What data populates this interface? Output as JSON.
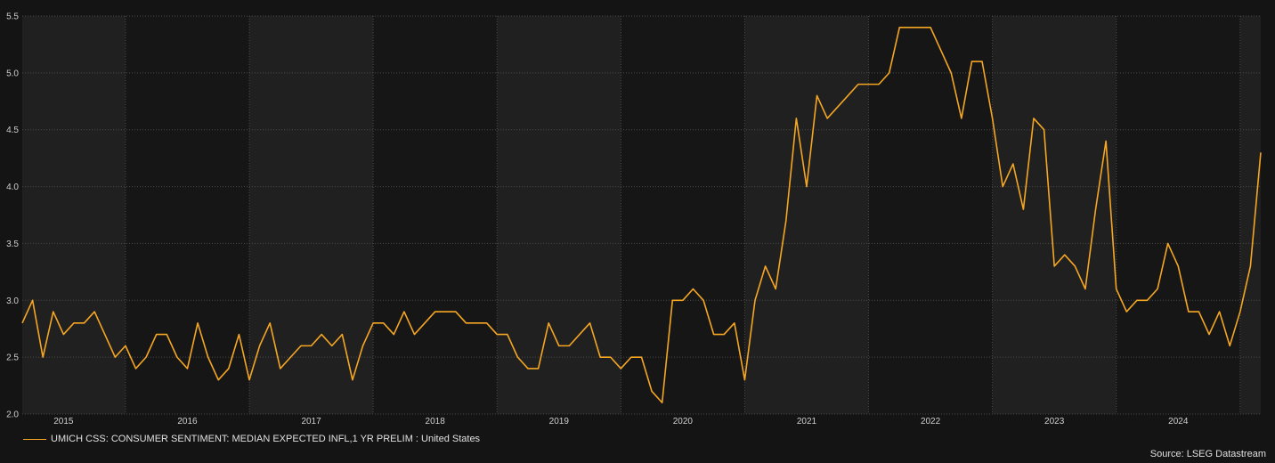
{
  "chart_data": {
    "type": "line",
    "title": "",
    "xlabel": "",
    "ylabel": "",
    "x_tick_labels": [
      "2015",
      "2016",
      "2017",
      "2018",
      "2019",
      "2020",
      "2021",
      "2022",
      "2023",
      "2024"
    ],
    "ylim": [
      2.0,
      5.5
    ],
    "y_ticks": [
      "2.0",
      "2.5",
      "3.0",
      "3.5",
      "4.0",
      "4.5",
      "5.0",
      "5.5"
    ],
    "grid": true,
    "legend_position": "bottom-left",
    "x_start": "2014-09",
    "series": [
      {
        "name": "UMICH CSS: CONSUMER SENTIMENT: MEDIAN EXPECTED INFL,1 YR PRELIM : United States",
        "color": "#f5a623",
        "values": [
          2.8,
          3.0,
          2.5,
          2.9,
          2.7,
          2.8,
          2.8,
          2.9,
          2.7,
          2.5,
          2.6,
          2.4,
          2.5,
          2.7,
          2.7,
          2.5,
          2.4,
          2.8,
          2.5,
          2.3,
          2.4,
          2.7,
          2.3,
          2.6,
          2.8,
          2.4,
          2.5,
          2.6,
          2.6,
          2.7,
          2.6,
          2.7,
          2.3,
          2.6,
          2.8,
          2.8,
          2.7,
          2.9,
          2.7,
          2.8,
          2.9,
          2.9,
          2.9,
          2.8,
          2.8,
          2.8,
          2.7,
          2.7,
          2.5,
          2.4,
          2.4,
          2.8,
          2.6,
          2.6,
          2.7,
          2.8,
          2.5,
          2.5,
          2.4,
          2.5,
          2.5,
          2.2,
          2.1,
          3.0,
          3.0,
          3.1,
          3.0,
          2.7,
          2.7,
          2.8,
          2.3,
          3.0,
          3.3,
          3.1,
          3.7,
          4.6,
          4.0,
          4.8,
          4.6,
          4.7,
          4.8,
          4.9,
          4.9,
          4.9,
          5.0,
          5.4,
          5.4,
          5.4,
          5.4,
          5.2,
          5.0,
          4.6,
          5.1,
          5.1,
          4.6,
          4.0,
          4.2,
          3.8,
          4.6,
          4.5,
          3.3,
          3.4,
          3.3,
          3.1,
          3.8,
          4.4,
          3.1,
          2.9,
          3.0,
          3.0,
          3.1,
          3.5,
          3.3,
          2.9,
          2.9,
          2.7,
          2.9,
          2.6,
          2.9,
          3.3,
          4.3
        ]
      }
    ]
  },
  "legend": {
    "label": "UMICH CSS: CONSUMER SENTIMENT: MEDIAN EXPECTED INFL,1 YR PRELIM : United States"
  },
  "source": {
    "text": "Source: LSEG Datastream"
  },
  "colors": {
    "background": "#141414",
    "band_light": "#202020",
    "band_dark": "#161616",
    "grid": "#4a4a4a",
    "line": "#f5a623"
  }
}
